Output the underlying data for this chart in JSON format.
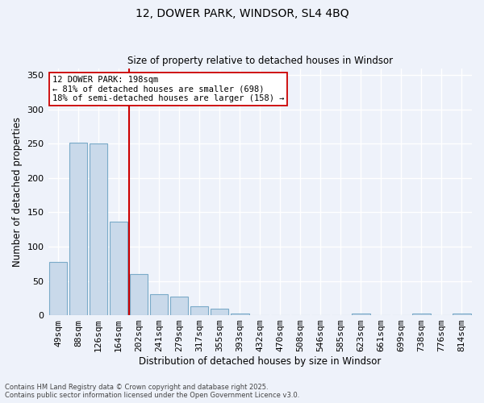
{
  "title_line1": "12, DOWER PARK, WINDSOR, SL4 4BQ",
  "title_line2": "Size of property relative to detached houses in Windsor",
  "xlabel": "Distribution of detached houses by size in Windsor",
  "ylabel": "Number of detached properties",
  "categories": [
    "49sqm",
    "88sqm",
    "126sqm",
    "164sqm",
    "202sqm",
    "241sqm",
    "279sqm",
    "317sqm",
    "355sqm",
    "393sqm",
    "432sqm",
    "470sqm",
    "508sqm",
    "546sqm",
    "585sqm",
    "623sqm",
    "661sqm",
    "699sqm",
    "738sqm",
    "776sqm",
    "814sqm"
  ],
  "values": [
    78,
    251,
    250,
    136,
    60,
    31,
    27,
    13,
    10,
    3,
    0,
    0,
    0,
    0,
    0,
    3,
    0,
    0,
    3,
    0,
    3
  ],
  "bar_color": "#c9d9ea",
  "bar_edge_color": "#7aaac8",
  "vline_color": "#cc0000",
  "vline_position": 3.5,
  "annotation_text": "12 DOWER PARK: 198sqm\n← 81% of detached houses are smaller (698)\n18% of semi-detached houses are larger (158) →",
  "annotation_box_facecolor": "#ffffff",
  "annotation_box_edgecolor": "#cc0000",
  "ylim": [
    0,
    360
  ],
  "yticks": [
    0,
    50,
    100,
    150,
    200,
    250,
    300,
    350
  ],
  "background_color": "#eef2fa",
  "grid_color": "#ffffff",
  "footer_line1": "Contains HM Land Registry data © Crown copyright and database right 2025.",
  "footer_line2": "Contains public sector information licensed under the Open Government Licence v3.0."
}
